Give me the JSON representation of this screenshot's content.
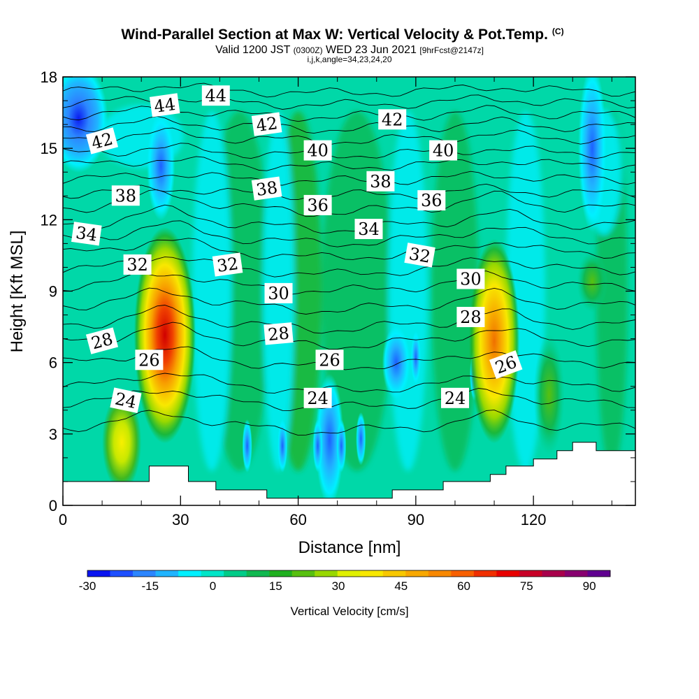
{
  "chart_data": {
    "type": "heatmap",
    "title": "Wind-Parallel Section at Max W: Vertical Velocity & Pot.Temp.",
    "title_mark": "(C)",
    "subtitle_prefix": "Valid 1200 JST",
    "subtitle_small": "(0300Z)",
    "subtitle_main": "WED 23 Jun 2021",
    "subtitle_run": "[9hrFcst@2147z]",
    "subtitle2": "i,j,k,angle=34,23,24,20",
    "xlabel": "Distance [nm]",
    "ylabel": "Height [Kft MSL]",
    "xlim": [
      0,
      146
    ],
    "ylim": [
      0,
      18
    ],
    "x_ticks": [
      "0",
      "30",
      "60",
      "90",
      "120"
    ],
    "y_ticks": [
      "0",
      "3",
      "6",
      "9",
      "12",
      "15",
      "18"
    ],
    "colorbar": {
      "label": "Vertical Velocity [cm/s]",
      "ticks": [
        "-30",
        "-15",
        "0",
        "15",
        "30",
        "45",
        "60",
        "75",
        "90"
      ],
      "min": -30,
      "max": 95,
      "colors": [
        "#0a14f0",
        "#1e50ff",
        "#2c86ff",
        "#20b4ff",
        "#00f0ff",
        "#00e6c8",
        "#00cc88",
        "#10b850",
        "#20b020",
        "#58c010",
        "#98d800",
        "#e0f000",
        "#f8e800",
        "#f8c800",
        "#f8a800",
        "#f88800",
        "#f86000",
        "#f03000",
        "#e80000",
        "#c80028",
        "#a8004c",
        "#880070",
        "#600090"
      ]
    },
    "updrafts": [
      {
        "x": 26,
        "z_bottom": 3.5,
        "z_top": 12,
        "peak_cm_s": 85
      },
      {
        "x": 110,
        "z_bottom": 3.5,
        "z_top": 11.5,
        "peak_cm_s": 55
      },
      {
        "x": 15,
        "z_bottom": 1.5,
        "z_top": 5,
        "peak_cm_s": 35
      },
      {
        "x": 124,
        "z_bottom": 3,
        "z_top": 7.5,
        "peak_cm_s": 20
      },
      {
        "x": 135,
        "z_bottom": 9,
        "z_top": 11,
        "peak_cm_s": 15
      }
    ],
    "downdrafts": [
      {
        "x": 4,
        "z_bottom": 14.5,
        "z_top": 18,
        "min_cm_s": -30
      },
      {
        "x": 25,
        "z_bottom": 12.5,
        "z_top": 16,
        "min_cm_s": -18
      },
      {
        "x": 68,
        "z_bottom": 0.5,
        "z_top": 5,
        "min_cm_s": -22
      },
      {
        "x": 85,
        "z_bottom": 5,
        "z_top": 7,
        "min_cm_s": -12
      },
      {
        "x": 135,
        "z_bottom": 12,
        "z_top": 18,
        "min_cm_s": -12
      }
    ],
    "terrain_kft": [
      {
        "x": 0,
        "z": 1.0
      },
      {
        "x": 22,
        "z": 1.0
      },
      {
        "x": 22,
        "z": 1.65
      },
      {
        "x": 32,
        "z": 1.65
      },
      {
        "x": 32,
        "z": 1.0
      },
      {
        "x": 39,
        "z": 1.0
      },
      {
        "x": 39,
        "z": 0.65
      },
      {
        "x": 52,
        "z": 0.65
      },
      {
        "x": 52,
        "z": 0.3
      },
      {
        "x": 84,
        "z": 0.3
      },
      {
        "x": 84,
        "z": 0.65
      },
      {
        "x": 97,
        "z": 0.65
      },
      {
        "x": 97,
        "z": 1.0
      },
      {
        "x": 109,
        "z": 1.0
      },
      {
        "x": 109,
        "z": 1.3
      },
      {
        "x": 113,
        "z": 1.3
      },
      {
        "x": 113,
        "z": 1.65
      },
      {
        "x": 120,
        "z": 1.65
      },
      {
        "x": 120,
        "z": 1.95
      },
      {
        "x": 126,
        "z": 1.95
      },
      {
        "x": 126,
        "z": 2.3
      },
      {
        "x": 130,
        "z": 2.3
      },
      {
        "x": 130,
        "z": 2.65
      },
      {
        "x": 136,
        "z": 2.65
      },
      {
        "x": 136,
        "z": 2.3
      },
      {
        "x": 146,
        "z": 2.3
      }
    ],
    "theta_levels": [
      {
        "theta": 23,
        "z": 3.3
      },
      {
        "theta": 24,
        "z": 4.3
      },
      {
        "theta": 25,
        "z": 5.0
      },
      {
        "theta": 26,
        "z": 6.0
      },
      {
        "theta": 27,
        "z": 6.9
      },
      {
        "theta": 28,
        "z": 7.6
      },
      {
        "theta": 29,
        "z": 8.4
      },
      {
        "theta": 30,
        "z": 9.2
      },
      {
        "theta": 31,
        "z": 9.9
      },
      {
        "theta": 32,
        "z": 10.6
      },
      {
        "theta": 33,
        "z": 11.2
      },
      {
        "theta": 34,
        "z": 11.8
      },
      {
        "theta": 35,
        "z": 12.5
      },
      {
        "theta": 36,
        "z": 13.1
      },
      {
        "theta": 37,
        "z": 13.7
      },
      {
        "theta": 38,
        "z": 14.3
      },
      {
        "theta": 39,
        "z": 14.8
      },
      {
        "theta": 40,
        "z": 15.4
      },
      {
        "theta": 41,
        "z": 15.9
      },
      {
        "theta": 42,
        "z": 16.4
      },
      {
        "theta": 43,
        "z": 16.9
      },
      {
        "theta": 44,
        "z": 17.4
      }
    ],
    "contour_labels": [
      {
        "text": "44",
        "x": 26,
        "z": 16.8,
        "angle": -8
      },
      {
        "text": "44",
        "x": 39,
        "z": 17.2,
        "angle": 0
      },
      {
        "text": "42",
        "x": 10,
        "z": 15.3,
        "angle": -15
      },
      {
        "text": "42",
        "x": 52,
        "z": 16.0,
        "angle": -8
      },
      {
        "text": "42",
        "x": 84,
        "z": 16.2,
        "angle": 0
      },
      {
        "text": "40",
        "x": 65,
        "z": 14.9,
        "angle": 0
      },
      {
        "text": "40",
        "x": 97,
        "z": 14.9,
        "angle": 0
      },
      {
        "text": "38",
        "x": 16,
        "z": 13.0,
        "angle": 0
      },
      {
        "text": "38",
        "x": 52,
        "z": 13.3,
        "angle": -8
      },
      {
        "text": "38",
        "x": 81,
        "z": 13.6,
        "angle": 0
      },
      {
        "text": "36",
        "x": 65,
        "z": 12.6,
        "angle": 0
      },
      {
        "text": "36",
        "x": 94,
        "z": 12.8,
        "angle": 0
      },
      {
        "text": "34",
        "x": 6,
        "z": 11.4,
        "angle": 8
      },
      {
        "text": "34",
        "x": 78,
        "z": 11.6,
        "angle": 0
      },
      {
        "text": "32",
        "x": 19,
        "z": 10.1,
        "angle": 0
      },
      {
        "text": "32",
        "x": 42,
        "z": 10.1,
        "angle": -8
      },
      {
        "text": "32",
        "x": 91,
        "z": 10.5,
        "angle": 10
      },
      {
        "text": "30",
        "x": 55,
        "z": 8.9,
        "angle": 0
      },
      {
        "text": "30",
        "x": 104,
        "z": 9.5,
        "angle": 0
      },
      {
        "text": "28",
        "x": 10,
        "z": 6.9,
        "angle": -15
      },
      {
        "text": "28",
        "x": 55,
        "z": 7.2,
        "angle": -5
      },
      {
        "text": "28",
        "x": 104,
        "z": 7.9,
        "angle": 0
      },
      {
        "text": "26",
        "x": 22,
        "z": 6.1,
        "angle": 0
      },
      {
        "text": "26",
        "x": 68,
        "z": 6.1,
        "angle": 0
      },
      {
        "text": "26",
        "x": 113,
        "z": 5.9,
        "angle": -20
      },
      {
        "text": "24",
        "x": 16,
        "z": 4.4,
        "angle": 12
      },
      {
        "text": "24",
        "x": 65,
        "z": 4.5,
        "angle": 0
      },
      {
        "text": "24",
        "x": 100,
        "z": 4.5,
        "angle": 0
      }
    ]
  }
}
